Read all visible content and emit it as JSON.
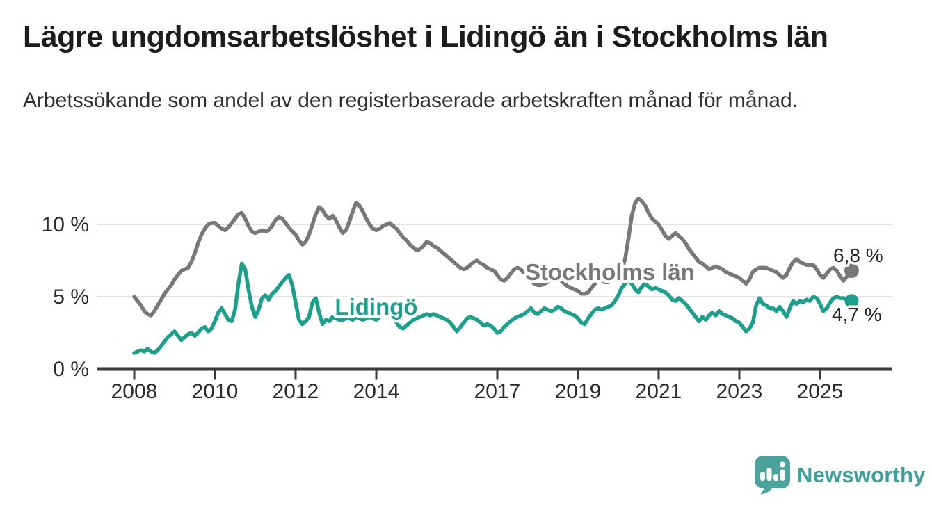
{
  "header": {
    "title": "Lägre ungdomsarbetslöshet i Lidingö än i Stockholms län",
    "subtitle": "Arbetssökande som andel av den registerbaserade arbetskraften månad för månad."
  },
  "logo": {
    "text": "Newsworthy",
    "icon": "newsworthy-speech-bubble-bar-chart-icon"
  },
  "colors": {
    "stockholms_lan_line": "#787878",
    "lidingo_line": "#1aa18c",
    "axis": "#3a3a3a",
    "grid": "#e2e2e2",
    "text_dark": "#222222",
    "logo_teal": "#4ba39d"
  },
  "chart_data": {
    "type": "line",
    "unit": "%",
    "frequency": "monthly",
    "x_start": {
      "year": 2008,
      "month": 1
    },
    "x_end": {
      "year": 2025,
      "month": 10
    },
    "ylim": [
      0,
      12
    ],
    "grid": "horizontal",
    "yticks": [
      {
        "value": 0,
        "label": "0 %"
      },
      {
        "value": 5,
        "label": "5 %"
      },
      {
        "value": 10,
        "label": "10 %"
      }
    ],
    "xticks": [
      2008,
      2010,
      2012,
      2014,
      2017,
      2019,
      2021,
      2023,
      2025
    ],
    "series": [
      {
        "name": "Stockholms län",
        "color": "#787878",
        "end_value": 6.8,
        "end_label": "6,8 %",
        "values": [
          5.0,
          4.7,
          4.4,
          4.0,
          3.8,
          3.7,
          4.0,
          4.4,
          4.8,
          5.2,
          5.5,
          5.8,
          6.2,
          6.5,
          6.8,
          6.9,
          7.0,
          7.4,
          8.0,
          8.7,
          9.3,
          9.7,
          10.0,
          10.1,
          10.1,
          9.9,
          9.7,
          9.6,
          9.8,
          10.1,
          10.4,
          10.7,
          10.8,
          10.4,
          9.9,
          9.5,
          9.4,
          9.5,
          9.6,
          9.5,
          9.6,
          9.9,
          10.3,
          10.5,
          10.4,
          10.1,
          9.8,
          9.5,
          9.3,
          8.9,
          8.6,
          8.8,
          9.3,
          10.0,
          10.7,
          11.2,
          11.0,
          10.6,
          10.4,
          10.6,
          10.3,
          9.8,
          9.4,
          9.6,
          10.2,
          10.9,
          11.5,
          11.3,
          10.9,
          10.4,
          10.0,
          9.7,
          9.6,
          9.7,
          9.9,
          10.0,
          10.1,
          9.9,
          9.7,
          9.4,
          9.1,
          8.9,
          8.6,
          8.4,
          8.2,
          8.3,
          8.5,
          8.8,
          8.7,
          8.5,
          8.4,
          8.2,
          8.0,
          7.8,
          7.6,
          7.4,
          7.2,
          7.0,
          6.9,
          7.0,
          7.2,
          7.4,
          7.5,
          7.3,
          7.2,
          7.0,
          6.9,
          6.8,
          6.5,
          6.2,
          6.1,
          6.3,
          6.6,
          6.9,
          7.0,
          6.9,
          6.6,
          6.3,
          6.1,
          5.9,
          5.8,
          5.8,
          5.9,
          6.0,
          6.2,
          6.3,
          6.2,
          6.1,
          5.9,
          5.7,
          5.6,
          5.5,
          5.4,
          5.2,
          5.2,
          5.3,
          5.6,
          5.9,
          6.1,
          6.1,
          6.0,
          6.0,
          6.1,
          6.2,
          6.4,
          6.8,
          7.6,
          9.0,
          10.6,
          11.5,
          11.8,
          11.6,
          11.3,
          10.8,
          10.4,
          10.2,
          10.0,
          9.6,
          9.2,
          9.0,
          9.2,
          9.4,
          9.2,
          9.0,
          8.7,
          8.3,
          8.0,
          7.7,
          7.4,
          7.3,
          7.1,
          6.9,
          7.0,
          7.1,
          7.0,
          6.9,
          6.7,
          6.6,
          6.5,
          6.4,
          6.3,
          6.1,
          5.9,
          6.2,
          6.7,
          6.9,
          7.0,
          7.0,
          7.0,
          6.9,
          6.8,
          6.7,
          6.5,
          6.3,
          6.5,
          7.0,
          7.4,
          7.6,
          7.4,
          7.3,
          7.2,
          7.2,
          7.2,
          6.9,
          6.5,
          6.3,
          6.6,
          6.9,
          7.0,
          6.8,
          6.4,
          6.1,
          6.4,
          6.8
        ]
      },
      {
        "name": "Lidingö",
        "color": "#1aa18c",
        "end_value": 4.7,
        "end_label": "4,7 %",
        "values": [
          1.1,
          1.2,
          1.3,
          1.2,
          1.4,
          1.2,
          1.1,
          1.3,
          1.6,
          1.9,
          2.2,
          2.4,
          2.6,
          2.3,
          2.0,
          2.2,
          2.4,
          2.5,
          2.3,
          2.5,
          2.8,
          2.9,
          2.6,
          2.8,
          3.3,
          3.9,
          4.2,
          3.8,
          3.4,
          3.3,
          4.1,
          5.9,
          7.3,
          6.9,
          5.5,
          4.3,
          3.6,
          4.1,
          4.9,
          5.1,
          4.8,
          5.2,
          5.4,
          5.7,
          6.0,
          6.3,
          6.5,
          5.8,
          4.6,
          3.4,
          3.1,
          3.3,
          3.6,
          4.6,
          4.9,
          3.9,
          3.1,
          3.4,
          3.3,
          3.6,
          3.5,
          3.4,
          3.4,
          3.5,
          3.5,
          3.4,
          3.6,
          3.5,
          3.4,
          3.5,
          3.6,
          3.5,
          3.4,
          3.6,
          3.9,
          4.2,
          3.9,
          3.5,
          3.2,
          2.9,
          2.8,
          3.0,
          3.2,
          3.4,
          3.5,
          3.6,
          3.7,
          3.8,
          3.7,
          3.8,
          3.7,
          3.6,
          3.5,
          3.4,
          3.2,
          2.9,
          2.6,
          2.9,
          3.2,
          3.5,
          3.6,
          3.5,
          3.4,
          3.2,
          3.0,
          3.1,
          3.0,
          2.8,
          2.5,
          2.6,
          2.9,
          3.1,
          3.3,
          3.5,
          3.6,
          3.7,
          3.8,
          4.0,
          4.2,
          3.9,
          3.8,
          4.0,
          4.2,
          4.1,
          4.0,
          4.1,
          4.3,
          4.2,
          4.0,
          3.9,
          3.8,
          3.7,
          3.5,
          3.2,
          3.1,
          3.5,
          3.8,
          4.1,
          4.2,
          4.1,
          4.2,
          4.3,
          4.4,
          4.7,
          5.1,
          5.6,
          5.9,
          6.1,
          5.9,
          5.5,
          5.3,
          5.7,
          5.9,
          5.7,
          5.5,
          5.6,
          5.5,
          5.4,
          5.3,
          5.1,
          4.8,
          4.7,
          4.9,
          4.7,
          4.5,
          4.2,
          3.9,
          3.6,
          3.3,
          3.6,
          3.4,
          3.7,
          3.9,
          3.7,
          4.0,
          3.8,
          3.7,
          3.6,
          3.5,
          3.3,
          3.2,
          2.9,
          2.6,
          2.8,
          3.2,
          4.4,
          4.9,
          4.5,
          4.4,
          4.2,
          4.2,
          4.0,
          4.3,
          4.0,
          3.6,
          4.2,
          4.7,
          4.5,
          4.7,
          4.6,
          4.8,
          4.7,
          5.0,
          4.9,
          4.5,
          4.0,
          4.2,
          4.6,
          4.9,
          5.0,
          4.9,
          4.9,
          4.8,
          4.7
        ]
      }
    ]
  }
}
